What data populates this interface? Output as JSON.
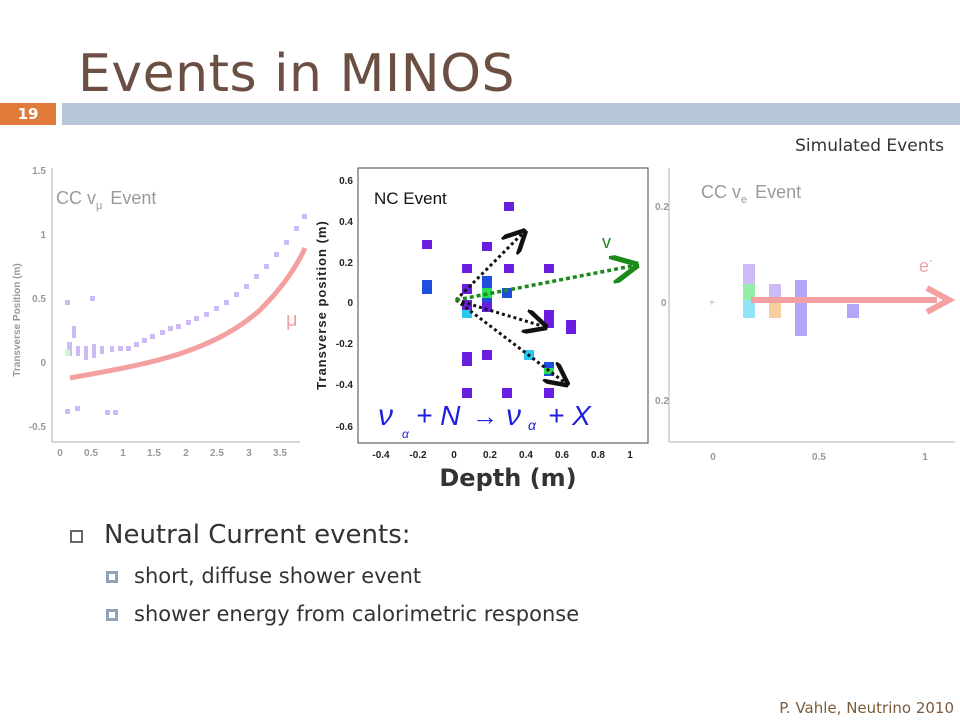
{
  "slide": {
    "title": "Events in MINOS",
    "number": "19",
    "simulated_label": "Simulated Events",
    "footer": "P. Vahle, Neutrino 2010"
  },
  "left_panel": {
    "label_main": "CC v",
    "label_sub": "μ",
    "label_tail": "Event",
    "ylabel": "Transverse Position (m)",
    "particle_label": "μ",
    "yticks": [
      "1.5",
      "1",
      "0.5",
      "0",
      "-0.5"
    ],
    "xticks": [
      "0",
      "0.5",
      "1",
      "1.5",
      "2",
      "2.5",
      "3",
      "3.5"
    ]
  },
  "center_panel": {
    "label": "NC Event",
    "ylabel": "Transverse position (m)",
    "xlabel": "Depth (m)",
    "nu_label": "v",
    "yticks": [
      "0.6",
      "0.4",
      "0.2",
      "0",
      "-0.2",
      "-0.4",
      "-0.6"
    ],
    "xticks": [
      "-0.4",
      "-0.2",
      "0",
      "0.2",
      "0.4",
      "0.6",
      "0.8",
      "1"
    ],
    "equation": {
      "nu1": "ν",
      "sub1": "α",
      "plus_n": "+ N",
      "arrow": "→",
      "nu2": "ν",
      "sub2": "α",
      "plus_x": "+ X"
    }
  },
  "right_panel": {
    "label_main": "CC v",
    "label_sub": "e",
    "label_tail": "Event",
    "electron_label": "e",
    "electron_sup": "-",
    "yticks": [
      "0.2",
      "0",
      "0.2"
    ],
    "xticks": [
      "0",
      "0.5",
      "1"
    ]
  },
  "bullets": {
    "main": "Neutral Current events:",
    "items": [
      "short, diffuse shower event",
      "shower energy from calorimetric response"
    ]
  },
  "colors": {
    "title": "#6b4f43",
    "header_bar": "#b8c7d8",
    "slide_number_bg": "#e17b3a",
    "track": "#f4a0a0",
    "hit_purple": "#6a1ee0",
    "hit_blue": "#1e4ee0",
    "hit_cyan": "#28c8f0",
    "hit_green": "#2ae050",
    "arrow_green": "#1a8a1a"
  }
}
